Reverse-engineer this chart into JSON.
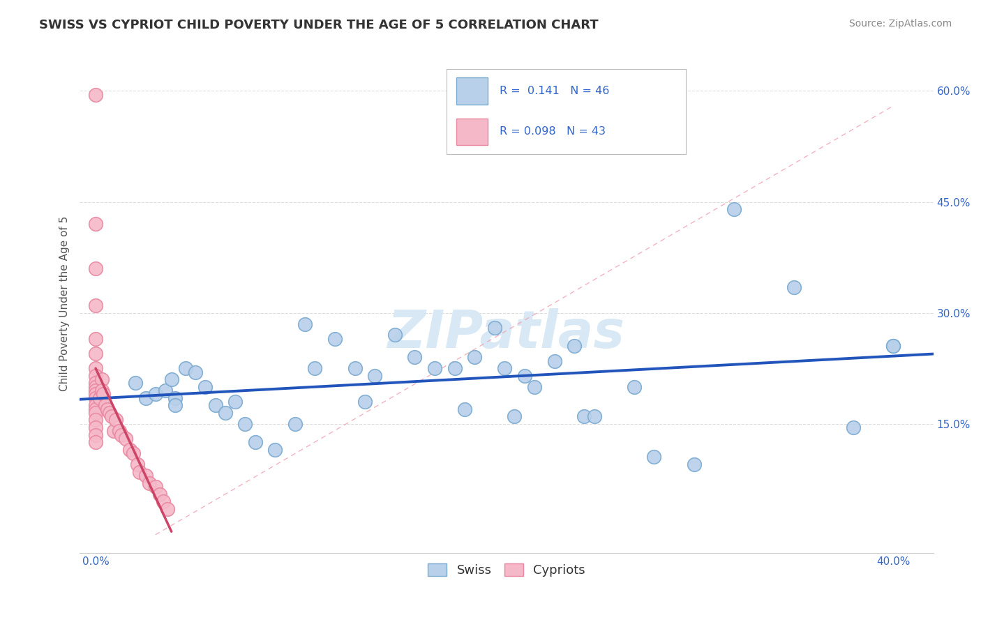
{
  "title": "SWISS VS CYPRIOT CHILD POVERTY UNDER THE AGE OF 5 CORRELATION CHART",
  "source_text": "Source: ZipAtlas.com",
  "ylabel": "Child Poverty Under the Age of 5",
  "xlim": [
    -0.008,
    0.42
  ],
  "ylim": [
    -0.025,
    0.65
  ],
  "swiss_R": "0.141",
  "swiss_N": "46",
  "cypriot_R": "0.098",
  "cypriot_N": "43",
  "swiss_color": "#b8d0ea",
  "cypriot_color": "#f5b8c8",
  "swiss_edge_color": "#7aaad0",
  "cypriot_edge_color": "#e888a0",
  "trend_swiss_color": "#2255bb",
  "trend_cypriot_color": "#cc4466",
  "diag_color": "#f0a0b0",
  "watermark": "ZIPatlas",
  "watermark_color": "#d8e8f4",
  "swiss_x": [
    0.02,
    0.025,
    0.03,
    0.035,
    0.038,
    0.04,
    0.04,
    0.045,
    0.05,
    0.055,
    0.06,
    0.065,
    0.07,
    0.075,
    0.08,
    0.09,
    0.1,
    0.105,
    0.11,
    0.12,
    0.13,
    0.135,
    0.14,
    0.15,
    0.16,
    0.17,
    0.18,
    0.185,
    0.19,
    0.2,
    0.205,
    0.21,
    0.215,
    0.22,
    0.23,
    0.24,
    0.245,
    0.25,
    0.27,
    0.28,
    0.3,
    0.32,
    0.35,
    0.38,
    0.4,
    0.4
  ],
  "swiss_y": [
    0.205,
    0.185,
    0.19,
    0.195,
    0.21,
    0.185,
    0.175,
    0.225,
    0.22,
    0.2,
    0.175,
    0.165,
    0.18,
    0.15,
    0.125,
    0.115,
    0.15,
    0.285,
    0.225,
    0.265,
    0.225,
    0.18,
    0.215,
    0.27,
    0.24,
    0.225,
    0.225,
    0.17,
    0.24,
    0.28,
    0.225,
    0.16,
    0.215,
    0.2,
    0.235,
    0.255,
    0.16,
    0.16,
    0.2,
    0.105,
    0.095,
    0.44,
    0.335,
    0.145,
    0.255,
    0.255
  ],
  "cypriot_x": [
    0.0,
    0.0,
    0.0,
    0.0,
    0.0,
    0.0,
    0.0,
    0.0,
    0.0,
    0.0,
    0.0,
    0.0,
    0.0,
    0.0,
    0.0,
    0.0,
    0.0,
    0.0,
    0.0,
    0.0,
    0.002,
    0.003,
    0.003,
    0.004,
    0.005,
    0.006,
    0.007,
    0.008,
    0.009,
    0.01,
    0.012,
    0.013,
    0.015,
    0.017,
    0.019,
    0.021,
    0.022,
    0.025,
    0.027,
    0.03,
    0.032,
    0.034,
    0.036
  ],
  "cypriot_y": [
    0.595,
    0.42,
    0.36,
    0.31,
    0.265,
    0.245,
    0.225,
    0.215,
    0.205,
    0.2,
    0.195,
    0.19,
    0.185,
    0.175,
    0.17,
    0.165,
    0.155,
    0.145,
    0.135,
    0.125,
    0.185,
    0.21,
    0.195,
    0.19,
    0.175,
    0.17,
    0.165,
    0.16,
    0.14,
    0.155,
    0.14,
    0.135,
    0.13,
    0.115,
    0.11,
    0.095,
    0.085,
    0.08,
    0.07,
    0.065,
    0.055,
    0.045,
    0.035
  ],
  "grid_color": "#dddddd",
  "background_color": "#ffffff",
  "title_fontsize": 13,
  "axis_label_fontsize": 11,
  "tick_fontsize": 11,
  "legend_fontsize": 12,
  "source_fontsize": 10
}
